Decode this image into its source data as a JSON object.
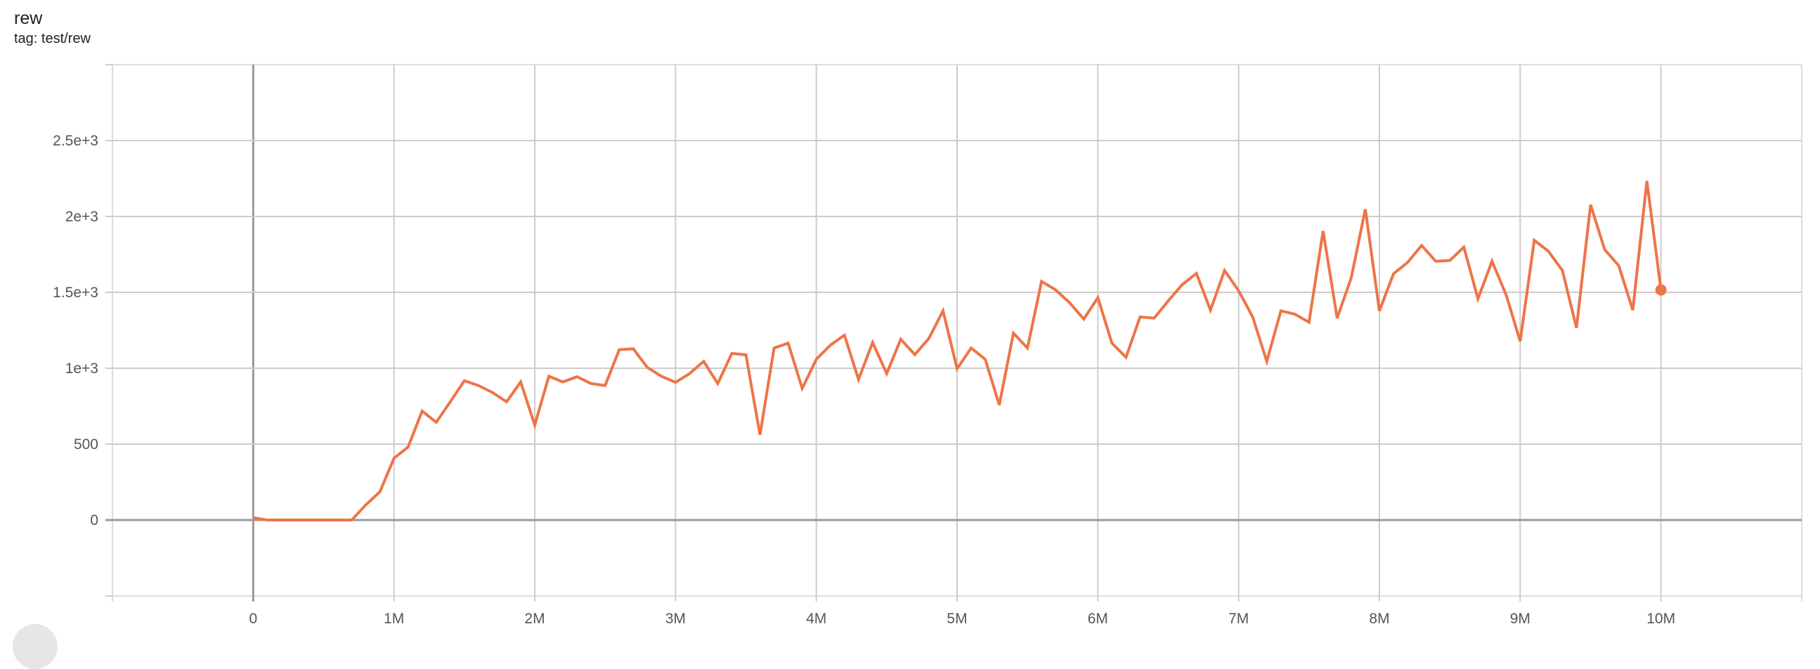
{
  "header": {
    "title": "rew",
    "tag": "tag: test/rew"
  },
  "chart_data": {
    "type": "line",
    "title": "rew",
    "xlabel": "",
    "ylabel": "",
    "xlim": [
      -1000000,
      11000000
    ],
    "ylim": [
      -500,
      3000
    ],
    "grid": true,
    "color": "#ee7448",
    "x_ticks": [
      {
        "v": 0,
        "label": "0"
      },
      {
        "v": 1000000,
        "label": "1M"
      },
      {
        "v": 2000000,
        "label": "2M"
      },
      {
        "v": 3000000,
        "label": "3M"
      },
      {
        "v": 4000000,
        "label": "4M"
      },
      {
        "v": 5000000,
        "label": "5M"
      },
      {
        "v": 6000000,
        "label": "6M"
      },
      {
        "v": 7000000,
        "label": "7M"
      },
      {
        "v": 8000000,
        "label": "8M"
      },
      {
        "v": 9000000,
        "label": "9M"
      },
      {
        "v": 10000000,
        "label": "10M"
      }
    ],
    "y_ticks": [
      {
        "v": 0,
        "label": "0"
      },
      {
        "v": 500,
        "label": "500"
      },
      {
        "v": 1000,
        "label": "1e+3"
      },
      {
        "v": 1500,
        "label": "1.5e+3"
      },
      {
        "v": 2000,
        "label": "2e+3"
      },
      {
        "v": 2500,
        "label": "2.5e+3"
      }
    ],
    "x_step": 100000,
    "values": [
      15,
      0,
      0,
      0,
      0,
      0,
      0,
      0,
      100,
      186,
      407,
      481,
      718,
      644,
      779,
      918,
      886,
      840,
      779,
      910,
      625,
      947,
      910,
      944,
      899,
      886,
      1122,
      1128,
      1005,
      947,
      907,
      965,
      1045,
      899,
      1098,
      1088,
      561,
      1133,
      1165,
      867,
      1059,
      1152,
      1218,
      926,
      1170,
      965,
      1191,
      1090,
      1197,
      1378,
      997,
      1133,
      1059,
      758,
      1231,
      1133,
      1572,
      1516,
      1431,
      1324,
      1465,
      1165,
      1072,
      1338,
      1330,
      1444,
      1551,
      1625,
      1383,
      1644,
      1511,
      1338,
      1045,
      1378,
      1356,
      1303,
      1904,
      1330,
      1596,
      2048,
      1378,
      1622,
      1697,
      1809,
      1705,
      1710,
      1798,
      1457,
      1705,
      1484,
      1178,
      1843,
      1771,
      1644,
      1266,
      2077,
      1782,
      1676,
      1383,
      2234,
      1516
    ]
  }
}
